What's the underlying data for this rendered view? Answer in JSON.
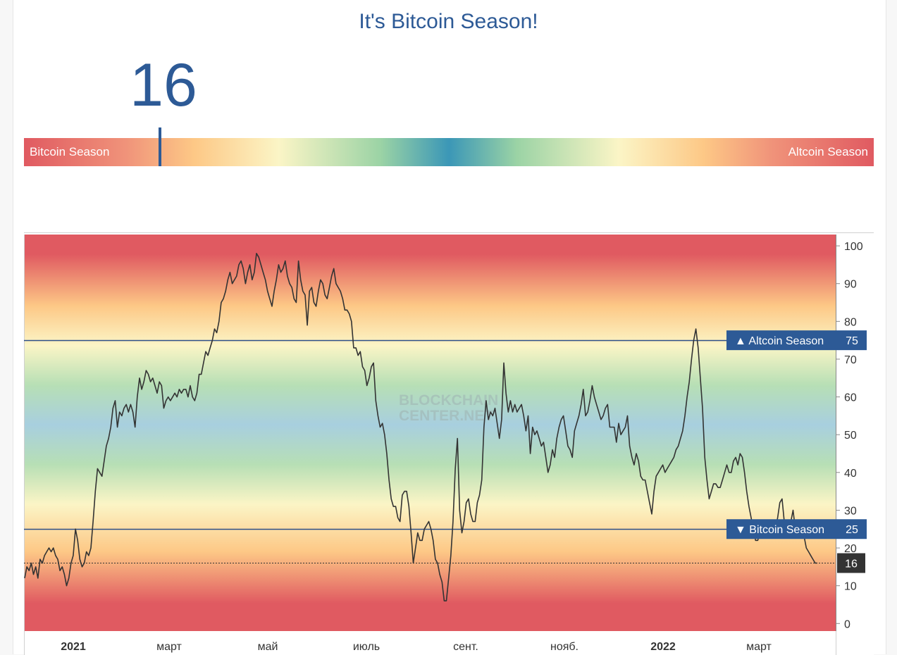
{
  "header": {
    "title": "It's Bitcoin Season!",
    "index_value": "16"
  },
  "scale": {
    "left_label": "Bitcoin Season",
    "right_label": "Altcoin Season",
    "marker_value": 16
  },
  "chart_data": {
    "type": "line",
    "title": "",
    "ylim": [
      -2,
      103
    ],
    "yticks": [
      0,
      10,
      20,
      30,
      40,
      50,
      60,
      70,
      80,
      90,
      100
    ],
    "xticks": [
      "2021",
      "март",
      "май",
      "июль",
      "сент.",
      "нояб.",
      "2022",
      "март"
    ],
    "watermark": [
      "BLOCKCHAIN",
      "CENTER.NET"
    ],
    "thresholds": [
      {
        "label": "▲ Altcoin Season",
        "value": 75
      },
      {
        "label": "▼ Bitcoin Season",
        "value": 25
      }
    ],
    "current": {
      "value": 16,
      "label": "16"
    },
    "colors": {
      "line": "#333333",
      "threshold": "#2d4f88",
      "tag_bg": "#2d5a96",
      "current_tag_bg": "#333333"
    },
    "series": [
      {
        "values": [
          12,
          15,
          14,
          16,
          13,
          15,
          12,
          17,
          16,
          18,
          19,
          20,
          19,
          20,
          18,
          17,
          14,
          15,
          13,
          10,
          12,
          16,
          18,
          25,
          22,
          17,
          15,
          16,
          19,
          18,
          20,
          27,
          35,
          41,
          40,
          39,
          43,
          47,
          49,
          52,
          57,
          59,
          52,
          56,
          55,
          57,
          58,
          56,
          58,
          56,
          52,
          60,
          65,
          62,
          64,
          67,
          66,
          64,
          65,
          63,
          61,
          64,
          63,
          57,
          59,
          60,
          59,
          60,
          61,
          60,
          62,
          61,
          62,
          62,
          60,
          63,
          60,
          59,
          61,
          66,
          66,
          69,
          72,
          71,
          73,
          75,
          78,
          77,
          80,
          85,
          86,
          88,
          91,
          93,
          90,
          91,
          92,
          95,
          96,
          94,
          90,
          93,
          95,
          91,
          93,
          98,
          97,
          95,
          93,
          91,
          88,
          86,
          84,
          88,
          91,
          95,
          93,
          94,
          96,
          92,
          90,
          89,
          86,
          85,
          96,
          91,
          88,
          87,
          79,
          88,
          89,
          85,
          84,
          88,
          91,
          90,
          87,
          86,
          89,
          92,
          94,
          90,
          89,
          88,
          86,
          83,
          83,
          82,
          80,
          73,
          73,
          71,
          72,
          68,
          67,
          63,
          65,
          68,
          69,
          59,
          55,
          52,
          53,
          50,
          45,
          38,
          33,
          31,
          31,
          28,
          27,
          34,
          35,
          35,
          31,
          24,
          16,
          20,
          24,
          22,
          22,
          25,
          26,
          27,
          25,
          22,
          17,
          16,
          13,
          11,
          6,
          6,
          12,
          18,
          27,
          41,
          49,
          30,
          24,
          27,
          32,
          33,
          29,
          27,
          27,
          32,
          34,
          38,
          52,
          59,
          54,
          56,
          55,
          57,
          53,
          49,
          54,
          69,
          61,
          56,
          59,
          56,
          58,
          56,
          57,
          58,
          55,
          51,
          55,
          45,
          52,
          50,
          51,
          49,
          47,
          48,
          44,
          40,
          42,
          46,
          44,
          49,
          52,
          54,
          55,
          51,
          47,
          46,
          44,
          51,
          53,
          55,
          58,
          62,
          55,
          56,
          59,
          63,
          60,
          58,
          56,
          54,
          55,
          57,
          58,
          52,
          52,
          52,
          48,
          53,
          50,
          51,
          52,
          55,
          47,
          44,
          42,
          45,
          43,
          39,
          38,
          38,
          35,
          32,
          29,
          35,
          39,
          40,
          41,
          42,
          40,
          41,
          42,
          43,
          44,
          46,
          47,
          49,
          51,
          55,
          60,
          64,
          70,
          75,
          78,
          73,
          65,
          57,
          44,
          38,
          33,
          35,
          37,
          37,
          36,
          36,
          38,
          40,
          42,
          40,
          40,
          43,
          44,
          42,
          45,
          44,
          40,
          35,
          31,
          28,
          25,
          22,
          22,
          24,
          23,
          25,
          23,
          25,
          24,
          27,
          25,
          28,
          32,
          33,
          27,
          24,
          26,
          27,
          30,
          25,
          25,
          25,
          26,
          23,
          20,
          19,
          18,
          17,
          16,
          16
        ]
      }
    ]
  }
}
